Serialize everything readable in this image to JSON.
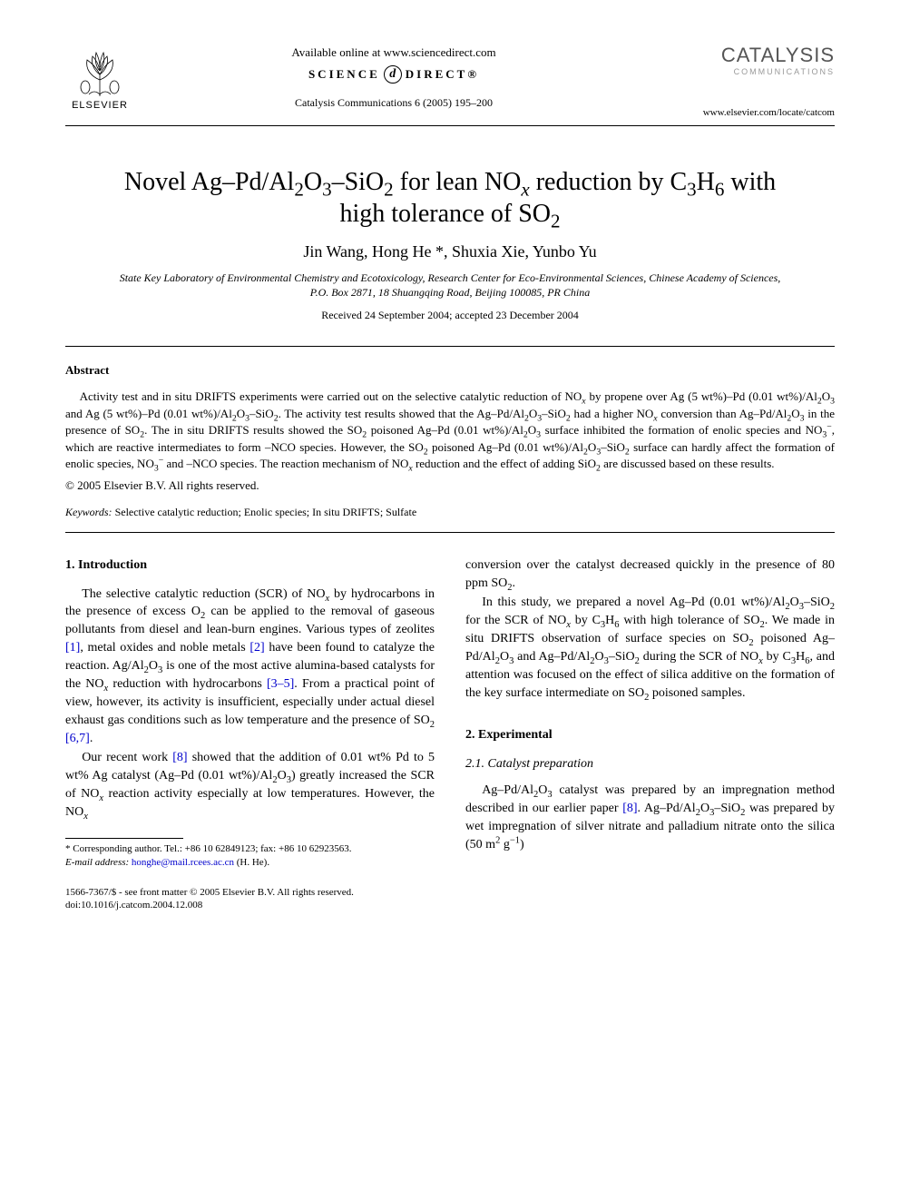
{
  "header": {
    "publisher_name": "ELSEVIER",
    "available_line": "Available online at www.sciencedirect.com",
    "sd_left": "SCIENCE",
    "sd_mid": "d",
    "sd_right": "DIRECT®",
    "journal_reference": "Catalysis Communications 6 (2005) 195–200",
    "journal_logo": "CATALYSIS",
    "journal_logo_sub": "COMMUNICATIONS",
    "locate_url": "www.elsevier.com/locate/catcom"
  },
  "title_html": "Novel Ag–Pd/Al<sub>2</sub>O<sub>3</sub>–SiO<sub>2</sub> for lean NO<sub><i>x</i></sub> reduction by C<sub>3</sub>H<sub>6</sub> with high tolerance of SO<sub>2</sub>",
  "authors_html": "Jin Wang, Hong He *, Shuxia Xie, Yunbo Yu",
  "affiliation": "State Key Laboratory of Environmental Chemistry and Ecotoxicology, Research Center for Eco-Environmental Sciences, Chinese Academy of Sciences, P.O. Box 2871, 18 Shuangqing Road, Beijing 100085, PR China",
  "dates": "Received 24 September 2004; accepted 23 December 2004",
  "abstract": {
    "heading": "Abstract",
    "body_html": "Activity test and in situ DRIFTS experiments were carried out on the selective catalytic reduction of NO<sub><i>x</i></sub> by propene over Ag (5 wt%)–Pd (0.01 wt%)/Al<sub>2</sub>O<sub>3</sub> and Ag (5 wt%)–Pd (0.01 wt%)/Al<sub>2</sub>O<sub>3</sub>–SiO<sub>2</sub>. The activity test results showed that the Ag–Pd/Al<sub>2</sub>O<sub>3</sub>–SiO<sub>2</sub> had a higher NO<sub><i>x</i></sub> conversion than Ag–Pd/Al<sub>2</sub>O<sub>3</sub> in the presence of SO<sub>2</sub>. The in situ DRIFTS results showed the SO<sub>2</sub> poisoned Ag–Pd (0.01 wt%)/Al<sub>2</sub>O<sub>3</sub> surface inhibited the formation of enolic species and NO<sub>3</sub><sup>−</sup>, which are reactive intermediates to form –NCO species. However, the SO<sub>2</sub> poisoned Ag–Pd (0.01 wt%)/Al<sub>2</sub>O<sub>3</sub>–SiO<sub>2</sub> surface can hardly affect the formation of enolic species, NO<sub>3</sub><sup>−</sup> and –NCO species. The reaction mechanism of NO<sub><i>x</i></sub> reduction and the effect of adding SiO<sub>2</sub> are discussed based on these results.",
    "copyright": "© 2005 Elsevier B.V. All rights reserved."
  },
  "keywords": {
    "label": "Keywords:",
    "text": "Selective catalytic reduction; Enolic species; In situ DRIFTS; Sulfate"
  },
  "body": {
    "sec1_head": "1. Introduction",
    "sec1_p1_html": "The selective catalytic reduction (SCR) of NO<sub><i>x</i></sub> by hydrocarbons in the presence of excess O<sub>2</sub> can be applied to the removal of gaseous pollutants from diesel and lean-burn engines. Various types of zeolites <span class=\"ref-link\">[1]</span>, metal oxides and noble metals <span class=\"ref-link\">[2]</span> have been found to catalyze the reaction. Ag/Al<sub>2</sub>O<sub>3</sub> is one of the most active alumina-based catalysts for the NO<sub><i>x</i></sub> reduction with hydrocarbons <span class=\"ref-link\">[3–5]</span>. From a practical point of view, however, its activity is insufficient, especially under actual diesel exhaust gas conditions such as low temperature and the presence of SO<sub>2</sub> <span class=\"ref-link\">[6,7]</span>.",
    "sec1_p2_html": "Our recent work <span class=\"ref-link\">[8]</span> showed that the addition of 0.01 wt% Pd to 5 wt% Ag catalyst (Ag–Pd (0.01 wt%)/Al<sub>2</sub>O<sub>3</sub>) greatly increased the SCR of NO<sub><i>x</i></sub> reaction activity especially at low temperatures. However, the NO<sub><i>x</i></sub>",
    "sec1_p3_html": "conversion over the catalyst decreased quickly in the presence of 80 ppm SO<sub>2</sub>.",
    "sec1_p4_html": "In this study, we prepared a novel Ag–Pd (0.01 wt%)/Al<sub>2</sub>O<sub>3</sub>–SiO<sub>2</sub> for the SCR of NO<sub><i>x</i></sub> by C<sub>3</sub>H<sub>6</sub> with high tolerance of SO<sub>2</sub>. We made in situ DRIFTS observation of surface species on SO<sub>2</sub> poisoned Ag–Pd/Al<sub>2</sub>O<sub>3</sub> and Ag–Pd/Al<sub>2</sub>O<sub>3</sub>–SiO<sub>2</sub> during the SCR of NO<sub><i>x</i></sub> by C<sub>3</sub>H<sub>6</sub>, and attention was focused on the effect of silica additive on the formation of the key surface intermediate on SO<sub>2</sub> poisoned samples.",
    "sec2_head": "2. Experimental",
    "sec2_1_head": "2.1. Catalyst preparation",
    "sec2_1_p1_html": "Ag–Pd/Al<sub>2</sub>O<sub>3</sub> catalyst was prepared by an impregnation method described in our earlier paper <span class=\"ref-link\">[8]</span>. Ag–Pd/Al<sub>2</sub>O<sub>3</sub>–SiO<sub>2</sub> was prepared by wet impregnation of silver nitrate and palladium nitrate onto the silica (50 m<sup>2</sup> g<sup>−1</sup>)"
  },
  "footnote": {
    "corr_html": "* Corresponding author. Tel.: +86 10 62849123; fax: +86 10 62923563.",
    "email_label": "E-mail address:",
    "email": "honghe@mail.rcees.ac.cn",
    "email_name": "(H. He)."
  },
  "frontmatter": {
    "line1": "1566-7367/$ - see front matter © 2005 Elsevier B.V. All rights reserved.",
    "line2": "doi:10.1016/j.catcom.2004.12.008"
  },
  "colors": {
    "link": "#0000cc",
    "text": "#000000",
    "bg": "#ffffff",
    "logo_gray": "#555555",
    "logo_light": "#999999"
  }
}
